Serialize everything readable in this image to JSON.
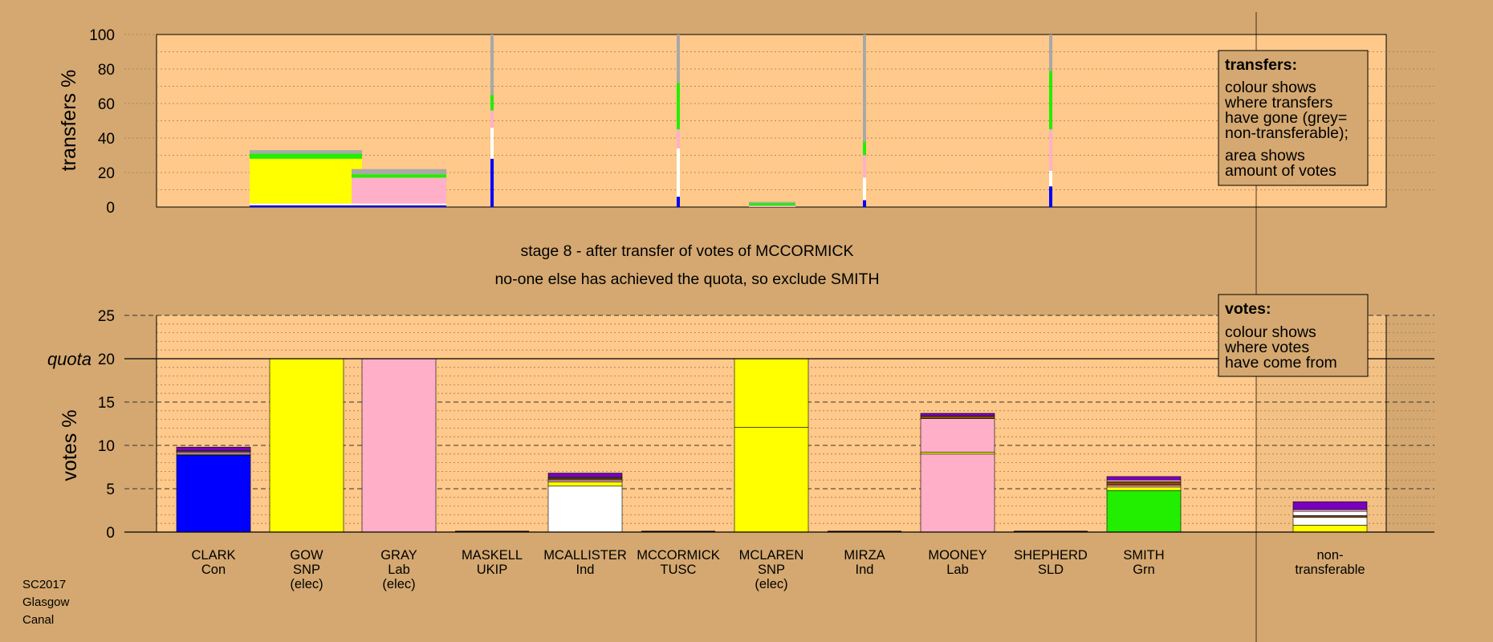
{
  "footer": [
    "SC2017",
    "Glasgow",
    "Canal"
  ],
  "message": {
    "line1": "stage 8 - after transfer of votes of MCCORMICK",
    "line2": "no-one else has achieved the quota, so exclude SMITH"
  },
  "colors": {
    "background": "#d4a870",
    "plot_bg": "#fec98a",
    "Con": "#0000ff",
    "SNP": "#ffff00",
    "Lab": "#ffb0c8",
    "UKIP": "#800080",
    "Ind": "#ffffff",
    "TUSC": "#cc0000",
    "SLD": "#ff9900",
    "Grn": "#22ee00",
    "nontransferable": "#a8a8a8",
    "purple": "#7a00c0",
    "brown": "#8a4a10"
  },
  "legend_transfers": {
    "title": "transfers:",
    "lines": [
      "colour shows",
      "where transfers",
      "have gone (grey=",
      "non-transferable);",
      "area shows",
      "amount of votes"
    ]
  },
  "legend_votes": {
    "title": "votes:",
    "lines": [
      "colour shows",
      "where votes",
      "have come from"
    ]
  },
  "chart_data": [
    {
      "type": "bar",
      "name": "transfers",
      "ylabel": "transfers %",
      "ylim": [
        0,
        100
      ],
      "yticks": [
        0,
        20,
        40,
        60,
        80,
        100
      ],
      "note": "stacked transfer shares per source candidate; width shows amount of votes",
      "blocks": [
        {
          "candidate": "GOW",
          "segments": [
            {
              "color": "Con",
              "value": 1
            },
            {
              "color": "Ind",
              "value": 1
            },
            {
              "color": "SNP",
              "value": 26
            },
            {
              "color": "Grn",
              "value": 3
            },
            {
              "color": "nontransferable",
              "value": 2
            }
          ]
        },
        {
          "candidate": "GRAY",
          "segments": [
            {
              "color": "Con",
              "value": 1
            },
            {
              "color": "Ind",
              "value": 1
            },
            {
              "color": "Lab",
              "value": 15
            },
            {
              "color": "Grn",
              "value": 2
            },
            {
              "color": "nontransferable",
              "value": 3
            }
          ]
        },
        {
          "candidate": "MASKELL",
          "segments": [
            {
              "color": "Con",
              "value": 28
            },
            {
              "color": "Ind",
              "value": 18
            },
            {
              "color": "Lab",
              "value": 10
            },
            {
              "color": "Grn",
              "value": 9
            },
            {
              "color": "nontransferable",
              "value": 35
            }
          ]
        },
        {
          "candidate": "MCCALLISTER",
          "segments": [
            {
              "color": "Con",
              "value": 6
            },
            {
              "color": "Ind",
              "value": 28
            },
            {
              "color": "Lab",
              "value": 11
            },
            {
              "color": "Grn",
              "value": 27
            },
            {
              "color": "nontransferable",
              "value": 28
            }
          ]
        },
        {
          "candidate": "MCLAREN",
          "segments": [
            {
              "color": "Lab",
              "value": 0.8
            },
            {
              "color": "Grn",
              "value": 1.5
            },
            {
              "color": "nontransferable",
              "value": 0.7
            }
          ]
        },
        {
          "candidate": "MIRZA",
          "segments": [
            {
              "color": "Con",
              "value": 4
            },
            {
              "color": "Ind",
              "value": 13
            },
            {
              "color": "Lab",
              "value": 13
            },
            {
              "color": "Grn",
              "value": 8
            },
            {
              "color": "nontransferable",
              "value": 62
            }
          ]
        },
        {
          "candidate": "SHEPHERD",
          "segments": [
            {
              "color": "Con",
              "value": 12
            },
            {
              "color": "Ind",
              "value": 9
            },
            {
              "color": "Lab",
              "value": 24
            },
            {
              "color": "Grn",
              "value": 34
            },
            {
              "color": "nontransferable",
              "value": 21
            }
          ]
        }
      ]
    },
    {
      "type": "bar",
      "name": "votes",
      "ylabel": "votes %",
      "ylim": [
        0,
        25
      ],
      "yticks": [
        0,
        5,
        10,
        15,
        20,
        25
      ],
      "quota": 20,
      "quota_label": "quota",
      "categories": [
        {
          "name": "CLARK",
          "party": "Con",
          "elec": ""
        },
        {
          "name": "GOW",
          "party": "SNP",
          "elec": "(elec)"
        },
        {
          "name": "GRAY",
          "party": "Lab",
          "elec": "(elec)"
        },
        {
          "name": "MASKELL",
          "party": "UKIP",
          "elec": ""
        },
        {
          "name": "MCALLISTER",
          "party": "Ind",
          "elec": ""
        },
        {
          "name": "MCCORMICK",
          "party": "TUSC",
          "elec": ""
        },
        {
          "name": "MCLAREN",
          "party": "SNP",
          "elec": "(elec)"
        },
        {
          "name": "MIRZA",
          "party": "Ind",
          "elec": ""
        },
        {
          "name": "MOONEY",
          "party": "Lab",
          "elec": ""
        },
        {
          "name": "SHEPHERD",
          "party": "SLD",
          "elec": ""
        },
        {
          "name": "SMITH",
          "party": "Grn",
          "elec": ""
        },
        {
          "name": "non-",
          "party": "transferable",
          "elec": ""
        }
      ],
      "stacks": [
        [
          {
            "color": "Con",
            "value": 8.9
          },
          {
            "color": "SNP",
            "value": 0.1
          },
          {
            "color": "Lab",
            "value": 0.2
          },
          {
            "color": "brown",
            "value": 0.1
          },
          {
            "color": "Ind",
            "value": 0.1
          },
          {
            "color": "purple",
            "value": 0.4
          }
        ],
        [
          {
            "color": "SNP",
            "value": 20
          }
        ],
        [
          {
            "color": "Lab",
            "value": 20
          }
        ],
        [
          {
            "color": "UKIP",
            "value": 0
          }
        ],
        [
          {
            "color": "Ind",
            "value": 5.3
          },
          {
            "color": "SNP",
            "value": 0.5
          },
          {
            "color": "Lab",
            "value": 0.2
          },
          {
            "color": "brown",
            "value": 0.2
          },
          {
            "color": "Grn",
            "value": 0.1
          },
          {
            "color": "purple",
            "value": 0.5
          }
        ],
        [
          {
            "color": "TUSC",
            "value": 0
          }
        ],
        [
          {
            "color": "SNP",
            "value": 12.1
          },
          {
            "color": "SNP",
            "value": 7.9
          }
        ],
        [
          {
            "color": "Ind",
            "value": 0
          }
        ],
        [
          {
            "color": "Lab",
            "value": 9
          },
          {
            "color": "SNP",
            "value": 0.2
          },
          {
            "color": "Lab",
            "value": 3.9
          },
          {
            "color": "brown",
            "value": 0.3
          },
          {
            "color": "purple",
            "value": 0.3
          }
        ],
        [
          {
            "color": "SLD",
            "value": 0
          }
        ],
        [
          {
            "color": "Grn",
            "value": 4.8
          },
          {
            "color": "SNP",
            "value": 0.4
          },
          {
            "color": "Lab",
            "value": 0.2
          },
          {
            "color": "brown",
            "value": 0.4
          },
          {
            "color": "Lab",
            "value": 0.2
          },
          {
            "color": "purple",
            "value": 0.4
          }
        ],
        [
          {
            "color": "SNP",
            "value": 0.8
          },
          {
            "color": "Ind",
            "value": 0.9
          },
          {
            "color": "brown",
            "value": 0.2
          },
          {
            "color": "Ind",
            "value": 0.5
          },
          {
            "color": "Lab",
            "value": 0.2
          },
          {
            "color": "purple",
            "value": 0.9
          }
        ]
      ]
    }
  ]
}
